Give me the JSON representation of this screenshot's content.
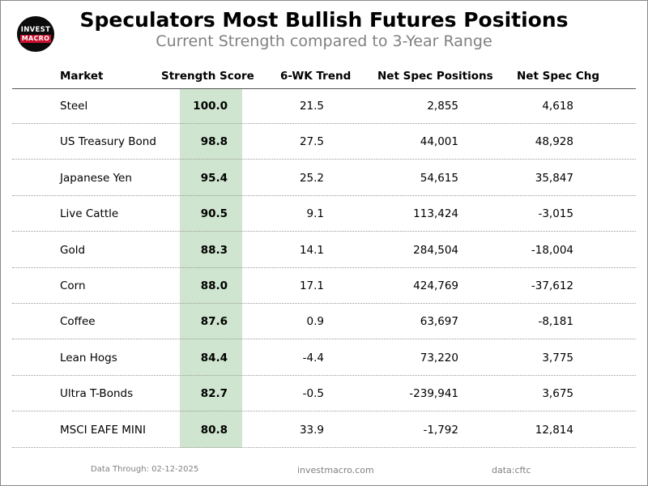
{
  "header": {
    "logo_line1": "INVEST",
    "logo_line2": "MACRO",
    "title": "Speculators Most Bullish Futures Positions",
    "subtitle": "Current Strength compared to 3-Year Range"
  },
  "chart_data": {
    "type": "table",
    "columns": [
      "Market",
      "Strength Score",
      "6-WK Trend",
      "Net Spec Positions",
      "Net Spec Chg"
    ],
    "rows": [
      {
        "market": "Steel",
        "score": "100.0",
        "trend": "21.5",
        "positions": "2,855",
        "change": "4,618"
      },
      {
        "market": "US Treasury Bond",
        "score": "98.8",
        "trend": "27.5",
        "positions": "44,001",
        "change": "48,928"
      },
      {
        "market": "Japanese Yen",
        "score": "95.4",
        "trend": "25.2",
        "positions": "54,615",
        "change": "35,847"
      },
      {
        "market": "Live Cattle",
        "score": "90.5",
        "trend": "9.1",
        "positions": "113,424",
        "change": "-3,015"
      },
      {
        "market": "Gold",
        "score": "88.3",
        "trend": "14.1",
        "positions": "284,504",
        "change": "-18,004"
      },
      {
        "market": "Corn",
        "score": "88.0",
        "trend": "17.1",
        "positions": "424,769",
        "change": "-37,612"
      },
      {
        "market": "Coffee",
        "score": "87.6",
        "trend": "0.9",
        "positions": "63,697",
        "change": "-8,181"
      },
      {
        "market": "Lean Hogs",
        "score": "84.4",
        "trend": "-4.4",
        "positions": "73,220",
        "change": "3,775"
      },
      {
        "market": "Ultra T-Bonds",
        "score": "82.7",
        "trend": "-0.5",
        "positions": "-239,941",
        "change": "3,675"
      },
      {
        "market": "MSCI EAFE MINI",
        "score": "80.8",
        "trend": "33.9",
        "positions": "-1,792",
        "change": "12,814"
      }
    ],
    "highlight_column": "Strength Score",
    "highlight_color": "#cfe5cf"
  },
  "footer": {
    "data_through": "Data Through: 02-12-2025",
    "site": "investmacro.com",
    "source": "data:cftc"
  },
  "colors": {
    "title": "#000000",
    "subtitle": "#808080",
    "logo_bg": "#0b0b0b",
    "logo_accent": "#c8102e"
  }
}
